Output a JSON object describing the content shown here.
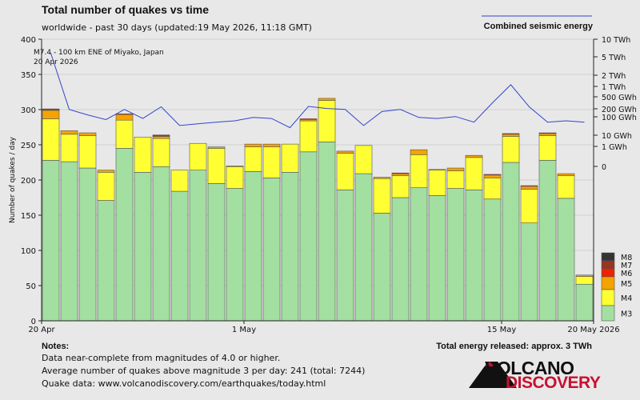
{
  "title": "Total number of quakes vs time",
  "subtitle": "worldwide - past 30 days (updated:19 May 2026, 11:18 GMT)",
  "energy_legend_label": "Combined seismic energy",
  "annotation": {
    "line1": "M7.4 - 100 km ENE of Miyako, Japan",
    "line2": "20 Apr 2026"
  },
  "notes": {
    "heading": "Notes:",
    "line1": "Data near-complete from magnitudes of 4.0 or higher.",
    "line2": "Average number of quakes above magnitude 3 per day: 241 (total: 7244)",
    "line3": "Quake data: www.volcanodiscovery.com/earthquakes/today.html"
  },
  "total_energy": "Total energy released: approx. 3 TWh",
  "logo": {
    "line1": "VOLCANO",
    "line2": "DISCOVERY"
  },
  "colors": {
    "M3": "#a3dfa0",
    "M4": "#ffff33",
    "M5": "#f5a300",
    "M6": "#ee2200",
    "M7": "#993322",
    "M8": "#333333",
    "energy_line": "#3344cc",
    "background": "#e8e8e8"
  },
  "chart_data": {
    "type": "bar",
    "stacked": true,
    "ylabel": "Number of quakes / day",
    "ylim": [
      0,
      400
    ],
    "y_ticks": [
      0,
      50,
      100,
      150,
      200,
      250,
      300,
      350,
      400
    ],
    "x_tick_labels": [
      {
        "label": "20 Apr",
        "index": 0
      },
      {
        "label": "1 May",
        "index": 11
      },
      {
        "label": "15 May",
        "index": 25
      },
      {
        "label": "20 May 2026",
        "index": 30
      }
    ],
    "right_axis": {
      "scale": "log",
      "ticks": [
        "10 TWh",
        "5 TWh",
        "2 TWh",
        "1 TWh",
        "500 GWh",
        "200 GWh",
        "100 GWh",
        "10 GWh",
        "1 GWh",
        "0"
      ]
    },
    "legend_magnitudes": [
      "M8",
      "M7",
      "M6",
      "M5",
      "M4",
      "M3"
    ],
    "series": [
      {
        "name": "M3",
        "values": [
          228,
          226,
          217,
          171,
          245,
          211,
          219,
          184,
          214,
          195,
          188,
          212,
          203,
          211,
          240,
          254,
          186,
          209,
          153,
          175,
          189,
          178,
          188,
          186,
          173,
          225,
          139,
          228,
          174,
          52
        ]
      },
      {
        "name": "M4",
        "values": [
          59,
          39,
          46,
          40,
          40,
          50,
          40,
          30,
          38,
          50,
          31,
          35,
          44,
          40,
          44,
          59,
          52,
          40,
          49,
          31,
          47,
          36,
          25,
          46,
          30,
          37,
          48,
          35,
          32,
          11
        ]
      },
      {
        "name": "M5",
        "values": [
          12,
          5,
          4,
          3,
          8,
          0,
          3,
          0,
          0,
          2,
          1,
          4,
          4,
          0,
          2,
          3,
          3,
          0,
          2,
          3,
          7,
          1,
          4,
          3,
          4,
          3,
          4,
          3,
          3,
          2
        ]
      },
      {
        "name": "M6",
        "values": [
          1,
          0,
          0,
          0,
          1,
          0,
          1,
          0,
          0,
          0,
          0,
          0,
          0,
          0,
          1,
          0,
          0,
          0,
          0,
          1,
          0,
          0,
          0,
          0,
          1,
          1,
          1,
          1,
          0,
          0
        ]
      },
      {
        "name": "M7",
        "values": [
          1,
          0,
          0,
          0,
          0,
          0,
          1,
          0,
          0,
          0,
          0,
          0,
          0,
          0,
          0,
          0,
          0,
          0,
          0,
          0,
          0,
          0,
          0,
          0,
          0,
          0,
          0,
          0,
          0,
          0
        ]
      },
      {
        "name": "M8",
        "values": [
          0,
          0,
          0,
          0,
          0,
          0,
          0,
          0,
          0,
          0,
          0,
          0,
          0,
          0,
          0,
          0,
          0,
          0,
          0,
          0,
          0,
          0,
          0,
          0,
          0,
          0,
          0,
          0,
          0,
          0
        ]
      }
    ],
    "energy_gwh": [
      3000,
      24,
      15,
      10,
      24,
      11,
      30,
      6,
      7,
      8,
      9,
      12,
      11,
      5,
      31,
      26,
      24,
      6,
      20,
      24,
      12,
      11,
      13,
      8,
      42,
      200,
      30,
      8,
      9,
      8
    ]
  }
}
